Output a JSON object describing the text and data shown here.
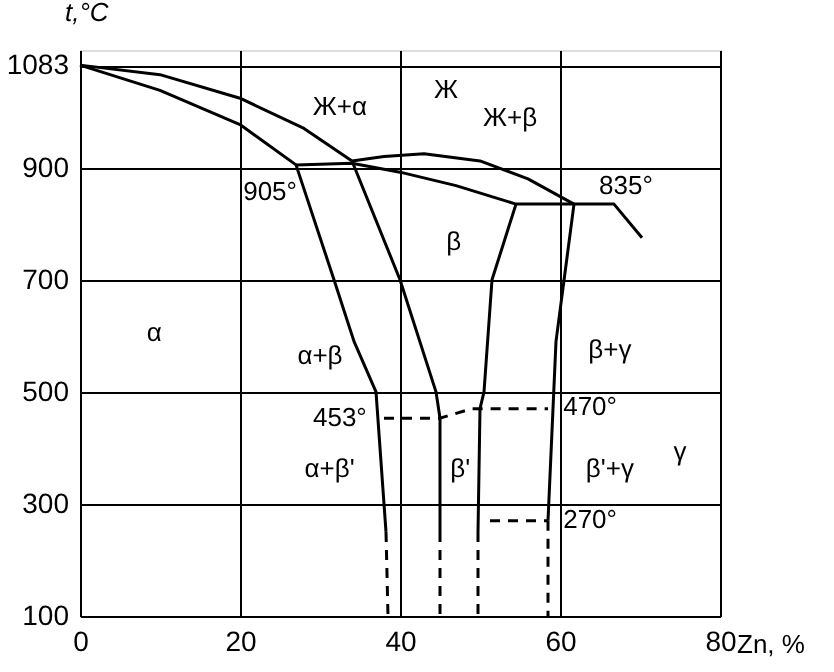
{
  "chart_data": {
    "type": "line",
    "xlabel": "Zn, %",
    "ylabel": "t,°C",
    "xlim": [
      0,
      80
    ],
    "ylim": [
      100,
      1110
    ],
    "xticks": [
      0,
      20,
      40,
      60,
      80
    ],
    "yticks": [
      100,
      300,
      500,
      700,
      900,
      {
        "value": 1083,
        "label": "1083"
      }
    ],
    "grid": true,
    "marker": "none",
    "series": [
      {
        "color": "#000000",
        "line_style": "solid",
        "x": [
          0,
          10,
          20,
          28,
          34,
          38,
          43,
          50,
          56,
          61.75
        ],
        "values": [
          1083,
          1066,
          1024,
          970,
          912,
          920,
          925,
          912,
          880,
          835
        ]
      },
      {
        "color": "#000000",
        "line_style": "solid",
        "x": [
          0,
          10,
          20,
          27,
          31.75,
          34.25,
          37,
          38.25
        ],
        "values": [
          1083,
          1038,
          977,
          905,
          700,
          590,
          500,
          250
        ]
      },
      {
        "color": "#000000",
        "line_style": "solid",
        "x": [
          27,
          34,
          40,
          47,
          54.5,
          66.75,
          70.25
        ],
        "values": [
          905,
          908,
          892,
          868,
          835,
          835,
          775
        ]
      },
      {
        "color": "#000000",
        "line_style": "dashed",
        "x": [
          38.25,
          38.5
        ],
        "values": [
          250,
          100
        ]
      },
      {
        "color": "#000000",
        "line_style": "solid",
        "x": [
          34,
          40,
          44.5,
          45,
          45
        ],
        "values": [
          912,
          700,
          500,
          453,
          250
        ]
      },
      {
        "color": "#000000",
        "line_style": "dashed",
        "x": [
          45,
          45
        ],
        "values": [
          250,
          100
        ]
      },
      {
        "color": "#000000",
        "line_style": "solid",
        "x": [
          54.5,
          51.5,
          50.5,
          50,
          49.75
        ],
        "values": [
          835,
          700,
          500,
          470,
          250
        ]
      },
      {
        "color": "#000000",
        "line_style": "dashed",
        "x": [
          49.75,
          49.75
        ],
        "values": [
          250,
          100
        ]
      },
      {
        "color": "#000000",
        "line_style": "solid",
        "x": [
          61.75,
          59.5,
          58.75,
          58.5
        ],
        "values": [
          835,
          590,
          350,
          270
        ]
      },
      {
        "color": "#000000",
        "line_style": "dashed",
        "x": [
          58.5,
          58.5
        ],
        "values": [
          270,
          100
        ]
      },
      {
        "color": "#000000",
        "line_style": "dashed",
        "x": [
          38,
          45,
          49,
          58.5
        ],
        "values": [
          453,
          453,
          470,
          470
        ]
      },
      {
        "color": "#000000",
        "line_style": "dashed",
        "x": [
          51.25,
          58.5
        ],
        "values": [
          270,
          270
        ]
      }
    ],
    "annotations": [
      "Ж+α",
      "Ж",
      "Ж+β",
      "905°",
      "835°",
      "β",
      "α",
      "α+β",
      "β+γ",
      "γ",
      "453°",
      "470°",
      "α+β'",
      "β'",
      "β'+γ",
      "270°"
    ]
  }
}
